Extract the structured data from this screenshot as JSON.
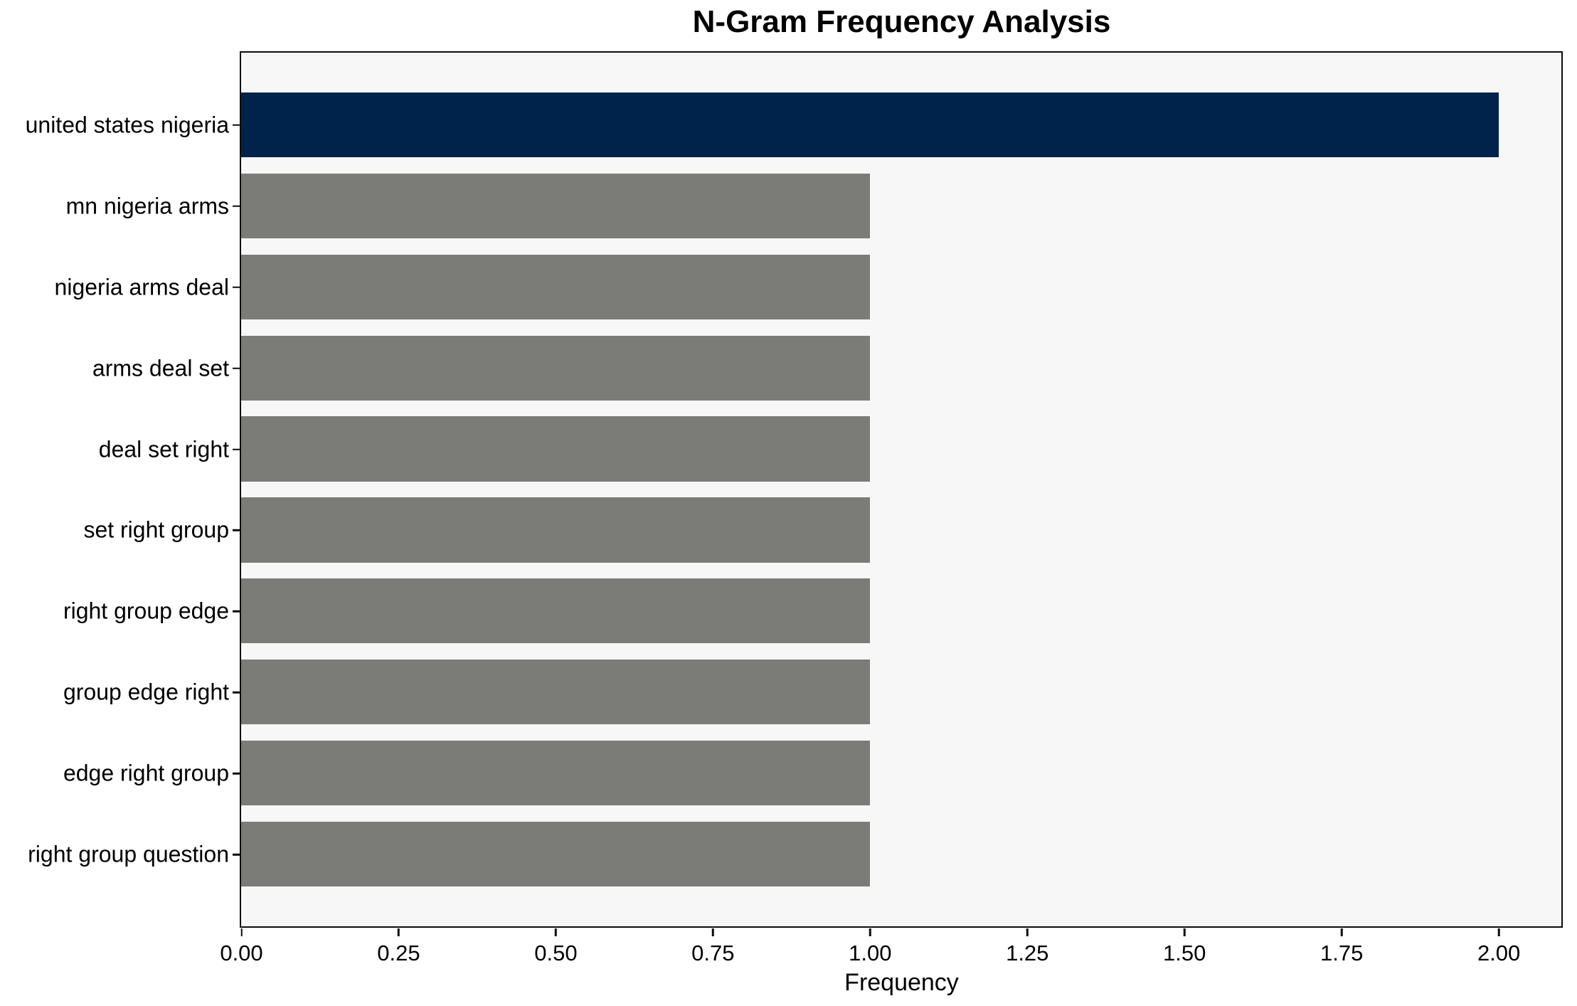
{
  "chart_data": {
    "type": "bar",
    "orientation": "horizontal",
    "title": "N-Gram Frequency Analysis",
    "xlabel": "Frequency",
    "ylabel": "",
    "categories": [
      "united states nigeria",
      "mn nigeria arms",
      "nigeria arms deal",
      "arms deal set",
      "deal set right",
      "set right group",
      "right group edge",
      "group edge right",
      "edge right group",
      "right group question"
    ],
    "values": [
      2,
      1,
      1,
      1,
      1,
      1,
      1,
      1,
      1,
      1
    ],
    "bar_colors": [
      "#00234c",
      "#7b7b78",
      "#7b7b78",
      "#7b7b78",
      "#7b7b78",
      "#7b7b78",
      "#7b7b78",
      "#7b7b78",
      "#7b7b78",
      "#7b7b78"
    ],
    "xlim": [
      0,
      2.1
    ],
    "xticks": [
      0,
      0.25,
      0.5,
      0.75,
      1.0,
      1.25,
      1.5,
      1.75,
      2.0
    ],
    "xtick_labels": [
      "0.00",
      "0.25",
      "0.50",
      "0.75",
      "1.00",
      "1.25",
      "1.50",
      "1.75",
      "2.00"
    ],
    "grid": false,
    "legend": false,
    "plot_background": "#f7f7f7",
    "figure_background": "#ffffff",
    "highlight_color": "#00234c",
    "default_color": "#7b7b78"
  }
}
